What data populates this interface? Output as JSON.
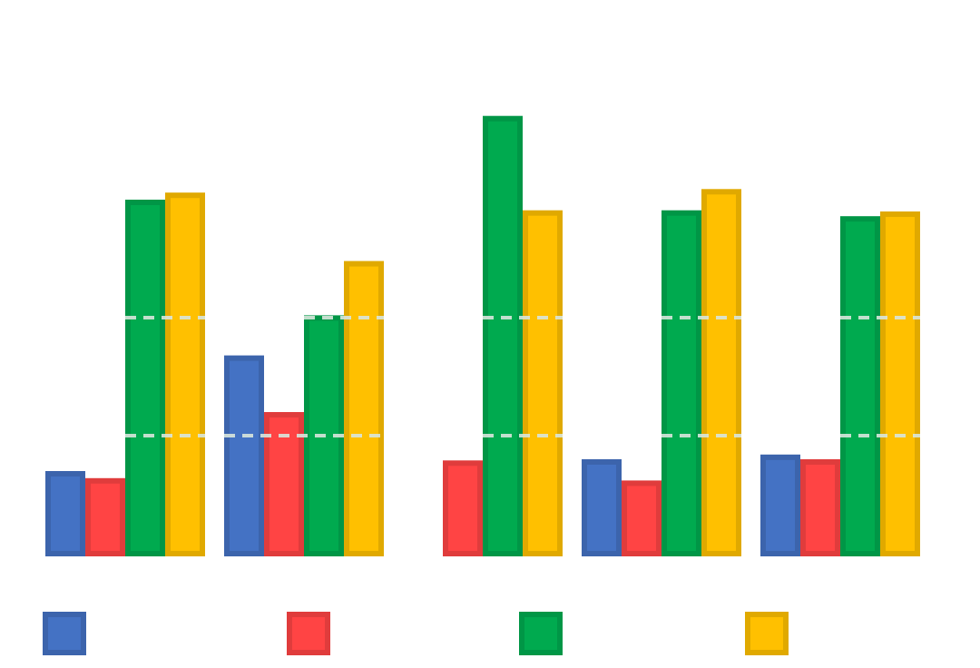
{
  "chart_data": {
    "type": "bar",
    "title": "",
    "xlabel": "",
    "ylabel": "",
    "categories": [
      "",
      "",
      "",
      "",
      ""
    ],
    "ylim": [
      0,
      3.7
    ],
    "gridlines": [
      1,
      2
    ],
    "grid_style": "dashed, drawn over bars",
    "legend_placement": "bottom",
    "series": [
      {
        "color": "#4472C4",
        "values": [
          0.7,
          1.68,
          0,
          0.8,
          0.84
        ]
      },
      {
        "color": "#FF4444",
        "values": [
          0.64,
          1.2,
          0.79,
          0.62,
          0.8
        ]
      },
      {
        "color": "#00AA4F",
        "values": [
          3.0,
          2.02,
          3.71,
          2.91,
          2.86
        ]
      },
      {
        "color": "#FFC000",
        "values": [
          3.06,
          2.48,
          2.91,
          3.09,
          2.9
        ]
      }
    ]
  }
}
